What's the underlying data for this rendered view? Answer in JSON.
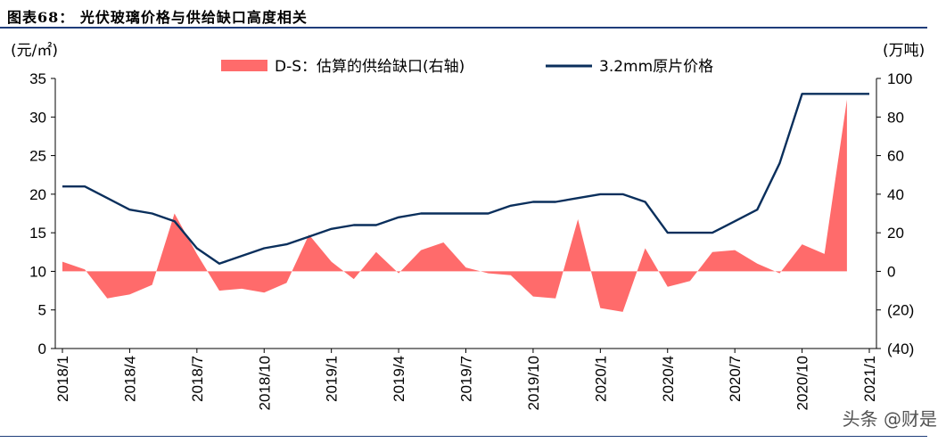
{
  "header": {
    "title": "图表68：  光伏玻璃价格与供给缺口高度相关"
  },
  "watermark": "头条 @财是",
  "colors": {
    "area": "#ff6b6b",
    "line": "#0a2f5c",
    "rule": "#1f3d7a"
  },
  "chart_data": {
    "type": "line+area",
    "left_unit": "(元/㎡)",
    "right_unit": "(万吨)",
    "left_ylim": [
      0,
      35
    ],
    "right_ylim": [
      -40,
      100
    ],
    "left_ticks": [
      "0",
      "5",
      "10",
      "15",
      "20",
      "25",
      "30",
      "35"
    ],
    "right_ticks": [
      "(40)",
      "(20)",
      "0",
      "20",
      "40",
      "60",
      "80",
      "100"
    ],
    "x_tick_labels": [
      "2018/1",
      "2018/4",
      "2018/7",
      "2018/10",
      "2019/1",
      "2019/4",
      "2019/7",
      "2019/10",
      "2020/1",
      "2020/4",
      "2020/7",
      "2020/10",
      "2021/1"
    ],
    "x_range": [
      "2018/1",
      "2021/1"
    ],
    "legend": [
      "D-S：估算的供给缺口(右轴)",
      "3.2mm原片价格"
    ],
    "series": [
      {
        "name": "D-S：估算的供给缺口(右轴)",
        "axis": "right",
        "kind": "area",
        "points": [
          [
            "2018/1",
            5
          ],
          [
            "2018/2",
            1
          ],
          [
            "2018/3",
            -14
          ],
          [
            "2018/4",
            -12
          ],
          [
            "2018/5",
            -7
          ],
          [
            "2018/6",
            30
          ],
          [
            "2018/7",
            9
          ],
          [
            "2018/8",
            -10
          ],
          [
            "2018/9",
            -9
          ],
          [
            "2018/10",
            -11
          ],
          [
            "2018/11",
            -6
          ],
          [
            "2018/12",
            19
          ],
          [
            "2019/1",
            5
          ],
          [
            "2019/2",
            -4
          ],
          [
            "2019/3",
            10
          ],
          [
            "2019/4",
            -1
          ],
          [
            "2019/5",
            11
          ],
          [
            "2019/6",
            15
          ],
          [
            "2019/7",
            2
          ],
          [
            "2019/8",
            -1
          ],
          [
            "2019/9",
            -2
          ],
          [
            "2019/10",
            -13
          ],
          [
            "2019/11",
            -14
          ],
          [
            "2019/12",
            27
          ],
          [
            "2020/1",
            -19
          ],
          [
            "2020/2",
            -21
          ],
          [
            "2020/3",
            12
          ],
          [
            "2020/4",
            -8
          ],
          [
            "2020/5",
            -5
          ],
          [
            "2020/6",
            10
          ],
          [
            "2020/7",
            11
          ],
          [
            "2020/8",
            4
          ],
          [
            "2020/9",
            -1
          ],
          [
            "2020/10",
            14
          ],
          [
            "2020/11",
            9
          ],
          [
            "2020/12",
            89
          ]
        ]
      },
      {
        "name": "3.2mm原片价格",
        "axis": "left",
        "kind": "line",
        "points": [
          [
            "2018/1",
            21
          ],
          [
            "2018/2",
            21
          ],
          [
            "2018/3",
            19.5
          ],
          [
            "2018/4",
            18
          ],
          [
            "2018/5",
            17.5
          ],
          [
            "2018/6",
            16.5
          ],
          [
            "2018/7",
            13
          ],
          [
            "2018/8",
            11
          ],
          [
            "2018/9",
            12
          ],
          [
            "2018/10",
            13
          ],
          [
            "2018/11",
            13.5
          ],
          [
            "2018/12",
            14.5
          ],
          [
            "2019/1",
            15.5
          ],
          [
            "2019/2",
            16
          ],
          [
            "2019/3",
            16
          ],
          [
            "2019/4",
            17
          ],
          [
            "2019/5",
            17.5
          ],
          [
            "2019/6",
            17.5
          ],
          [
            "2019/7",
            17.5
          ],
          [
            "2019/8",
            17.5
          ],
          [
            "2019/9",
            18.5
          ],
          [
            "2019/10",
            19
          ],
          [
            "2019/11",
            19
          ],
          [
            "2019/12",
            19.5
          ],
          [
            "2020/1",
            20
          ],
          [
            "2020/2",
            20
          ],
          [
            "2020/3",
            19
          ],
          [
            "2020/4",
            15
          ],
          [
            "2020/5",
            15
          ],
          [
            "2020/6",
            15
          ],
          [
            "2020/7",
            16.5
          ],
          [
            "2020/8",
            18
          ],
          [
            "2020/9",
            24
          ],
          [
            "2020/10",
            33
          ],
          [
            "2020/11",
            33
          ],
          [
            "2020/12",
            33
          ],
          [
            "2021/1",
            33
          ]
        ]
      }
    ]
  }
}
